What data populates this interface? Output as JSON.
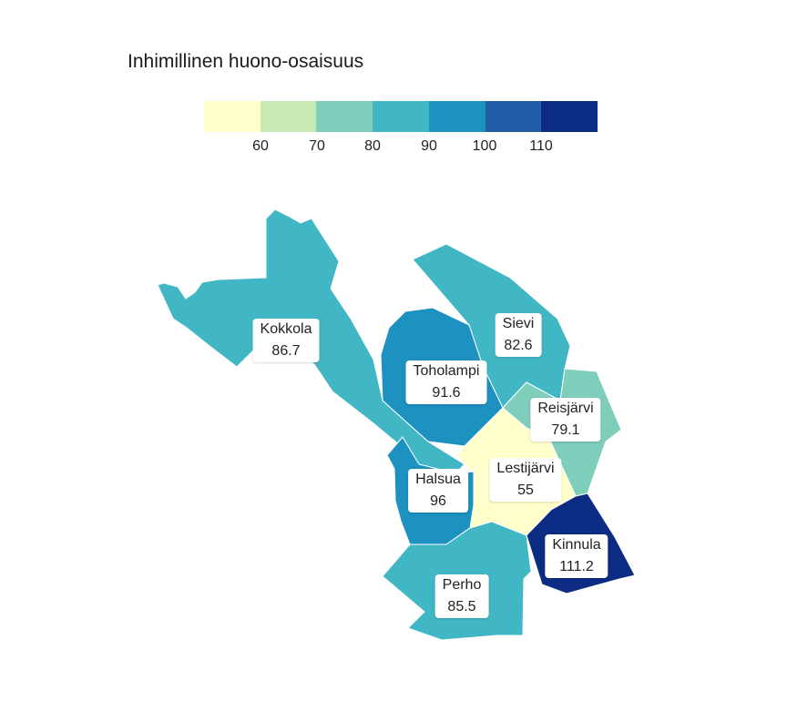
{
  "title": "Inhimillinen huono-osaisuus",
  "legend": {
    "colors": [
      "#ffffcc",
      "#c7e9b4",
      "#7fcdbb",
      "#41b6c4",
      "#1d91c0",
      "#225ea8",
      "#0c2c84"
    ],
    "ticks": [
      "60",
      "70",
      "80",
      "90",
      "100",
      "110"
    ]
  },
  "regions": [
    {
      "name": "Kokkola",
      "value": "86.7",
      "color": "#41b6c4"
    },
    {
      "name": "Sievi",
      "value": "82.6",
      "color": "#41b6c4"
    },
    {
      "name": "Toholampi",
      "value": "91.6",
      "color": "#1d91c0"
    },
    {
      "name": "Reisjärvi",
      "value": "79.1",
      "color": "#7fcdbb"
    },
    {
      "name": "Lestijärvi",
      "value": "55",
      "color": "#ffffcc"
    },
    {
      "name": "Halsua",
      "value": "96",
      "color": "#1d91c0"
    },
    {
      "name": "Kinnula",
      "value": "111.2",
      "color": "#0c2c84"
    },
    {
      "name": "Perho",
      "value": "85.5",
      "color": "#41b6c4"
    }
  ]
}
